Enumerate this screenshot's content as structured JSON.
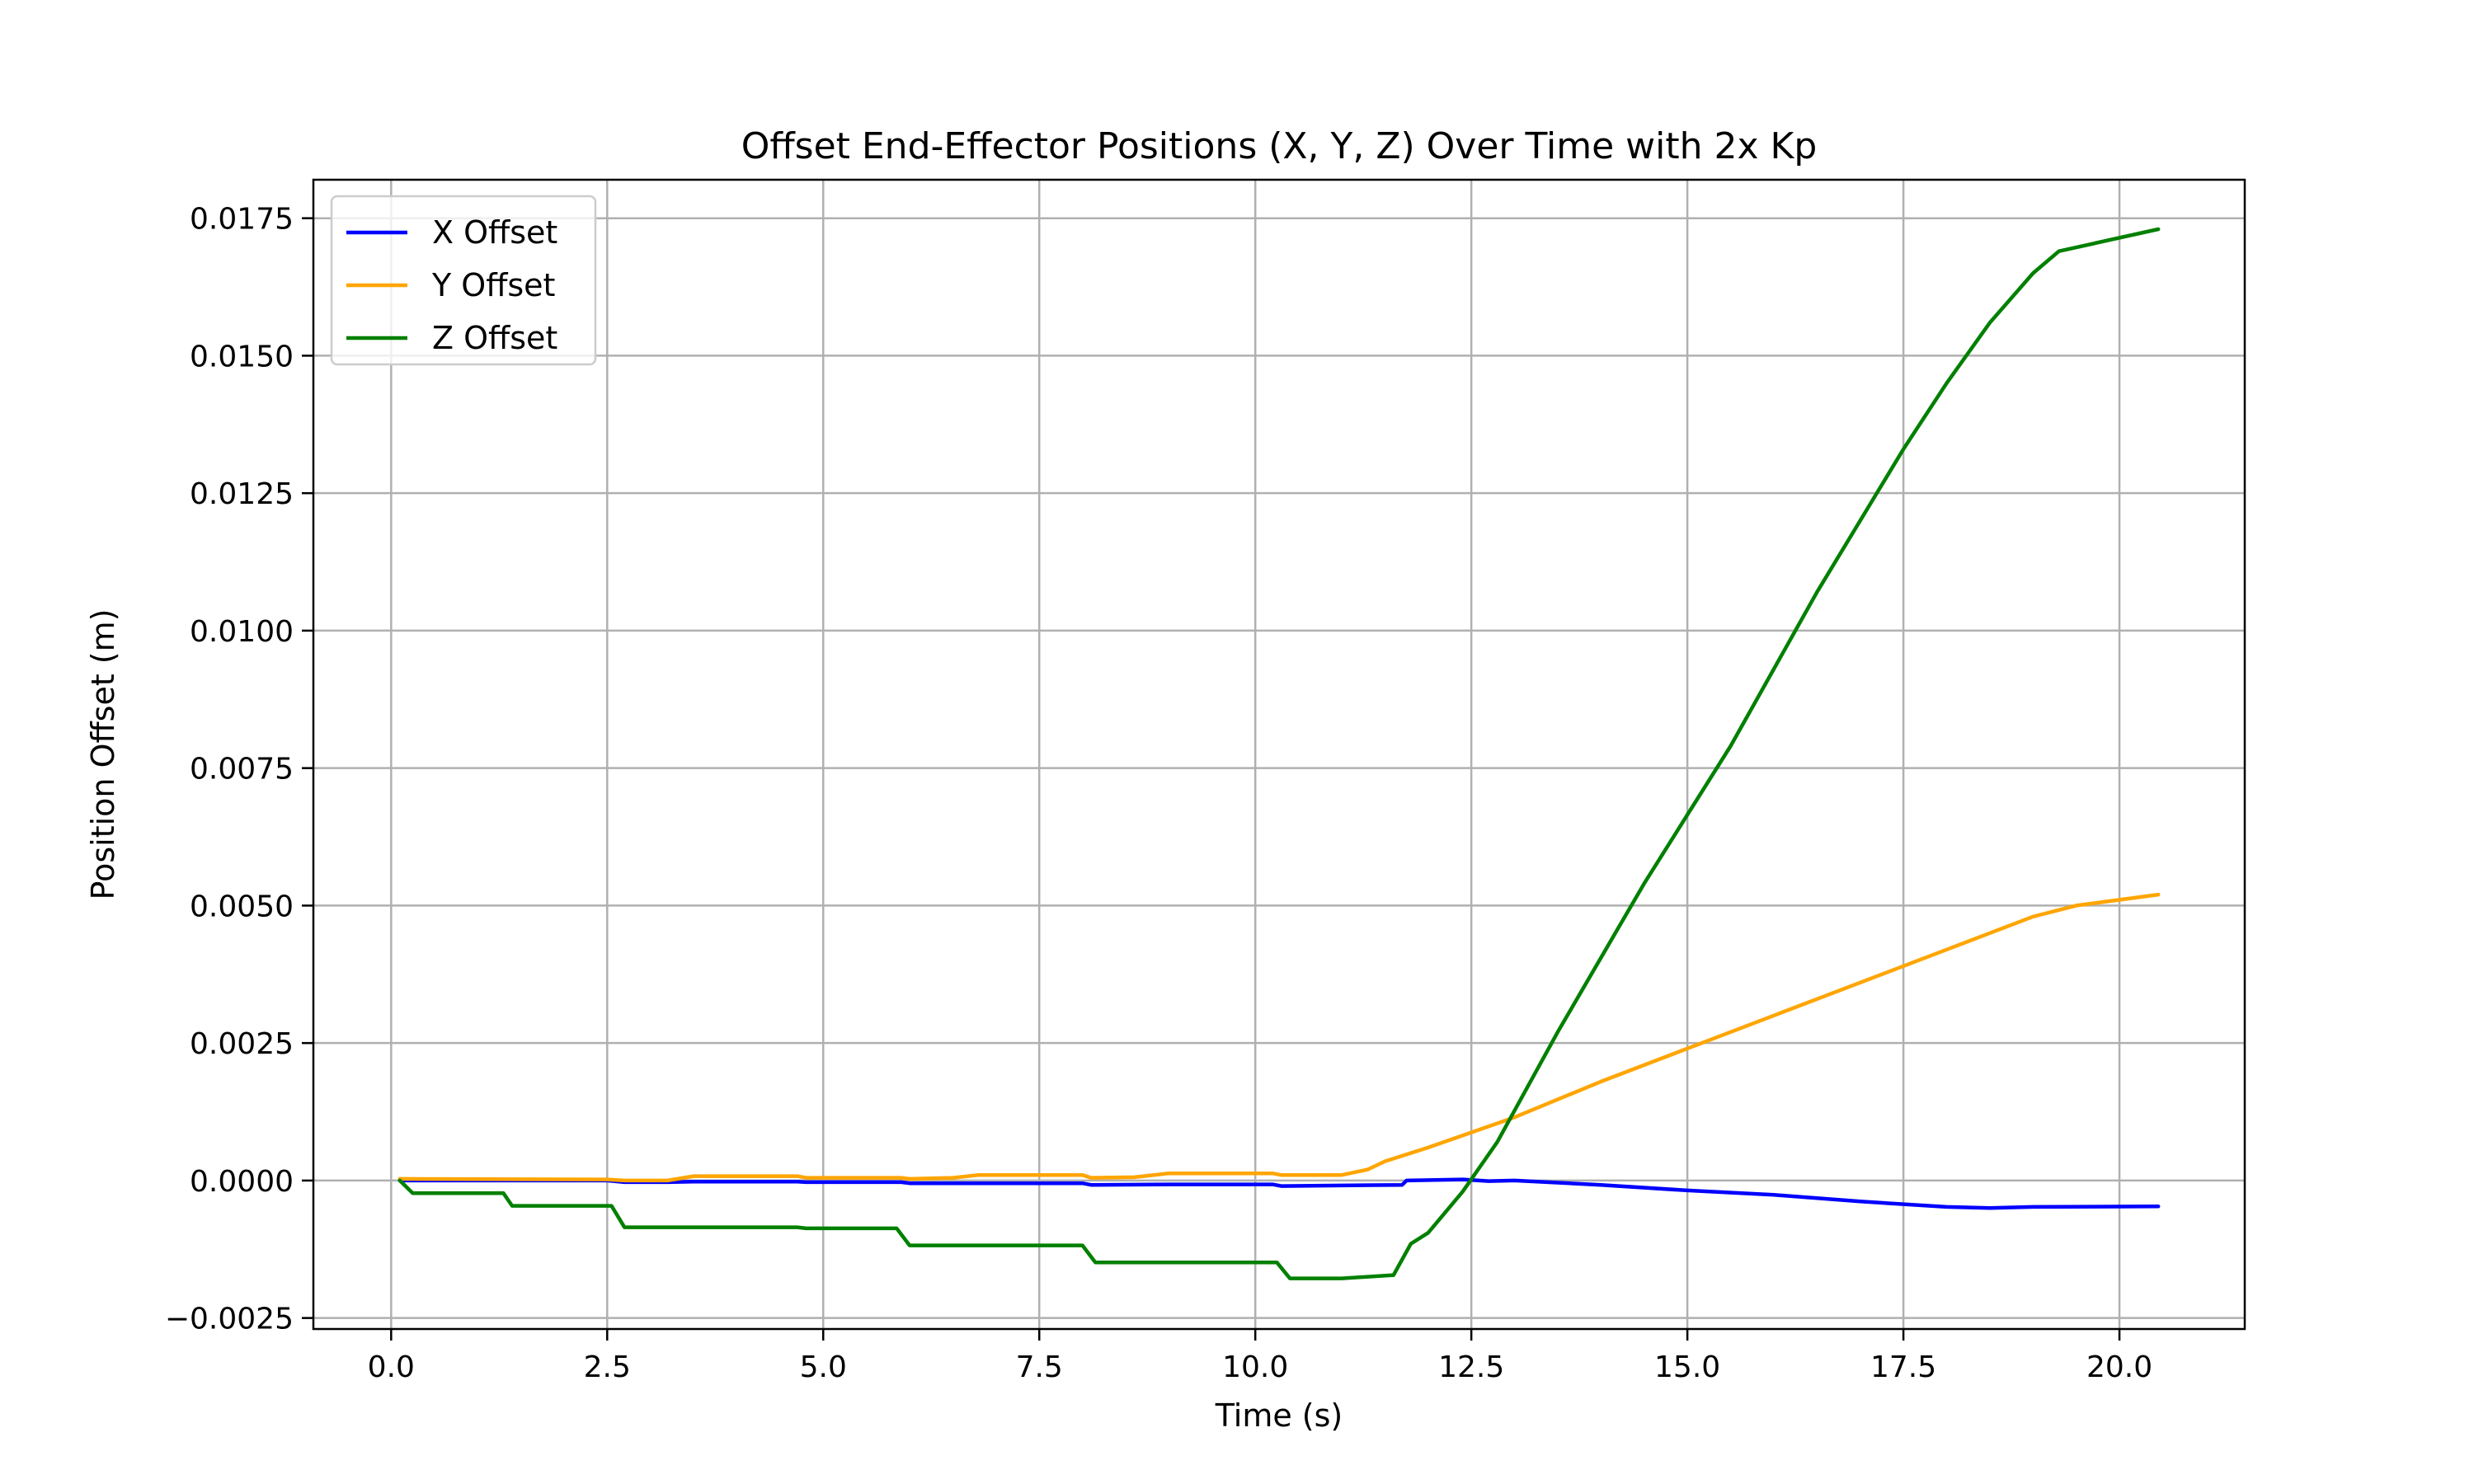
{
  "chart_data": {
    "type": "line",
    "title": "Offset End-Effector Positions (X, Y, Z) Over Time with 2x Kp",
    "xlabel": "Time (s)",
    "ylabel": "Position Offset (m)",
    "xlim": [
      -0.9,
      21.45
    ],
    "ylim": [
      -0.0027,
      0.0182
    ],
    "xticks": [
      0.0,
      2.5,
      5.0,
      7.5,
      10.0,
      12.5,
      15.0,
      17.5,
      20.0
    ],
    "xtick_labels": [
      "0.0",
      "2.5",
      "5.0",
      "7.5",
      "10.0",
      "12.5",
      "15.0",
      "17.5",
      "20.0"
    ],
    "yticks": [
      -0.0025,
      0.0,
      0.0025,
      0.005,
      0.0075,
      0.01,
      0.0125,
      0.015,
      0.0175
    ],
    "ytick_labels": [
      "−0.0025",
      "0.0000",
      "0.0025",
      "0.0050",
      "0.0075",
      "0.0100",
      "0.0125",
      "0.0150",
      "0.0175"
    ],
    "grid": true,
    "legend_position": "upper-left",
    "series": [
      {
        "name": "X Offset",
        "color": "#0000ff",
        "points": [
          [
            0.1,
            0.0
          ],
          [
            2.5,
            0.0
          ],
          [
            2.7,
            -3e-05
          ],
          [
            3.2,
            -3e-05
          ],
          [
            3.5,
            -2e-05
          ],
          [
            4.7,
            -2e-05
          ],
          [
            4.8,
            -3e-05
          ],
          [
            5.9,
            -3e-05
          ],
          [
            6.0,
            -5e-05
          ],
          [
            8.0,
            -5e-05
          ],
          [
            8.1,
            -8e-05
          ],
          [
            9.0,
            -7e-05
          ],
          [
            10.2,
            -7e-05
          ],
          [
            10.3,
            -0.0001
          ],
          [
            11.7,
            -8e-05
          ],
          [
            11.75,
            0.0
          ],
          [
            12.4,
            2e-05
          ],
          [
            12.7,
            -1e-05
          ],
          [
            13.0,
            0.0
          ],
          [
            14.0,
            -8e-05
          ],
          [
            15.0,
            -0.00018
          ],
          [
            16.0,
            -0.00026
          ],
          [
            17.0,
            -0.00038
          ],
          [
            18.0,
            -0.00048
          ],
          [
            18.5,
            -0.0005
          ],
          [
            19.0,
            -0.00048
          ],
          [
            20.45,
            -0.00047
          ]
        ]
      },
      {
        "name": "Y Offset",
        "color": "#ffa500",
        "points": [
          [
            0.1,
            3e-05
          ],
          [
            2.5,
            2e-05
          ],
          [
            2.7,
            0.0
          ],
          [
            3.2,
            0.0
          ],
          [
            3.5,
            8e-05
          ],
          [
            4.7,
            8e-05
          ],
          [
            4.8,
            5e-05
          ],
          [
            5.9,
            5e-05
          ],
          [
            6.0,
            3e-05
          ],
          [
            6.5,
            5e-05
          ],
          [
            6.8,
            0.0001
          ],
          [
            8.0,
            0.0001
          ],
          [
            8.1,
            5e-05
          ],
          [
            8.6,
            6e-05
          ],
          [
            9.0,
            0.00013
          ],
          [
            10.2,
            0.00013
          ],
          [
            10.3,
            0.0001
          ],
          [
            11.0,
            0.0001
          ],
          [
            11.3,
            0.0002
          ],
          [
            11.5,
            0.00035
          ],
          [
            12.0,
            0.0006
          ],
          [
            13.0,
            0.00115
          ],
          [
            14.0,
            0.0018
          ],
          [
            15.0,
            0.0024
          ],
          [
            16.0,
            0.003
          ],
          [
            17.0,
            0.0036
          ],
          [
            18.0,
            0.0042
          ],
          [
            18.5,
            0.0045
          ],
          [
            19.0,
            0.0048
          ],
          [
            19.5,
            0.005
          ],
          [
            20.45,
            0.0052
          ]
        ]
      },
      {
        "name": "Z Offset",
        "color": "#008000",
        "points": [
          [
            0.1,
            0.0
          ],
          [
            0.25,
            -0.00023
          ],
          [
            1.3,
            -0.00023
          ],
          [
            1.4,
            -0.00046
          ],
          [
            2.55,
            -0.00046
          ],
          [
            2.7,
            -0.00085
          ],
          [
            4.7,
            -0.00085
          ],
          [
            4.8,
            -0.00087
          ],
          [
            5.85,
            -0.00087
          ],
          [
            6.0,
            -0.00118
          ],
          [
            8.0,
            -0.00118
          ],
          [
            8.15,
            -0.00149
          ],
          [
            8.8,
            -0.00149
          ],
          [
            10.25,
            -0.00149
          ],
          [
            10.4,
            -0.00178
          ],
          [
            11.0,
            -0.00178
          ],
          [
            11.6,
            -0.00172
          ],
          [
            11.8,
            -0.00115
          ],
          [
            12.0,
            -0.00095
          ],
          [
            12.4,
            -0.0002
          ],
          [
            12.8,
            0.0007
          ],
          [
            13.5,
            0.0027
          ],
          [
            14.5,
            0.0054
          ],
          [
            15.5,
            0.0079
          ],
          [
            16.5,
            0.0107
          ],
          [
            17.5,
            0.0133
          ],
          [
            18.0,
            0.0145
          ],
          [
            18.5,
            0.0156
          ],
          [
            19.0,
            0.0165
          ],
          [
            19.3,
            0.0169
          ],
          [
            20.45,
            0.0173
          ]
        ]
      }
    ]
  }
}
